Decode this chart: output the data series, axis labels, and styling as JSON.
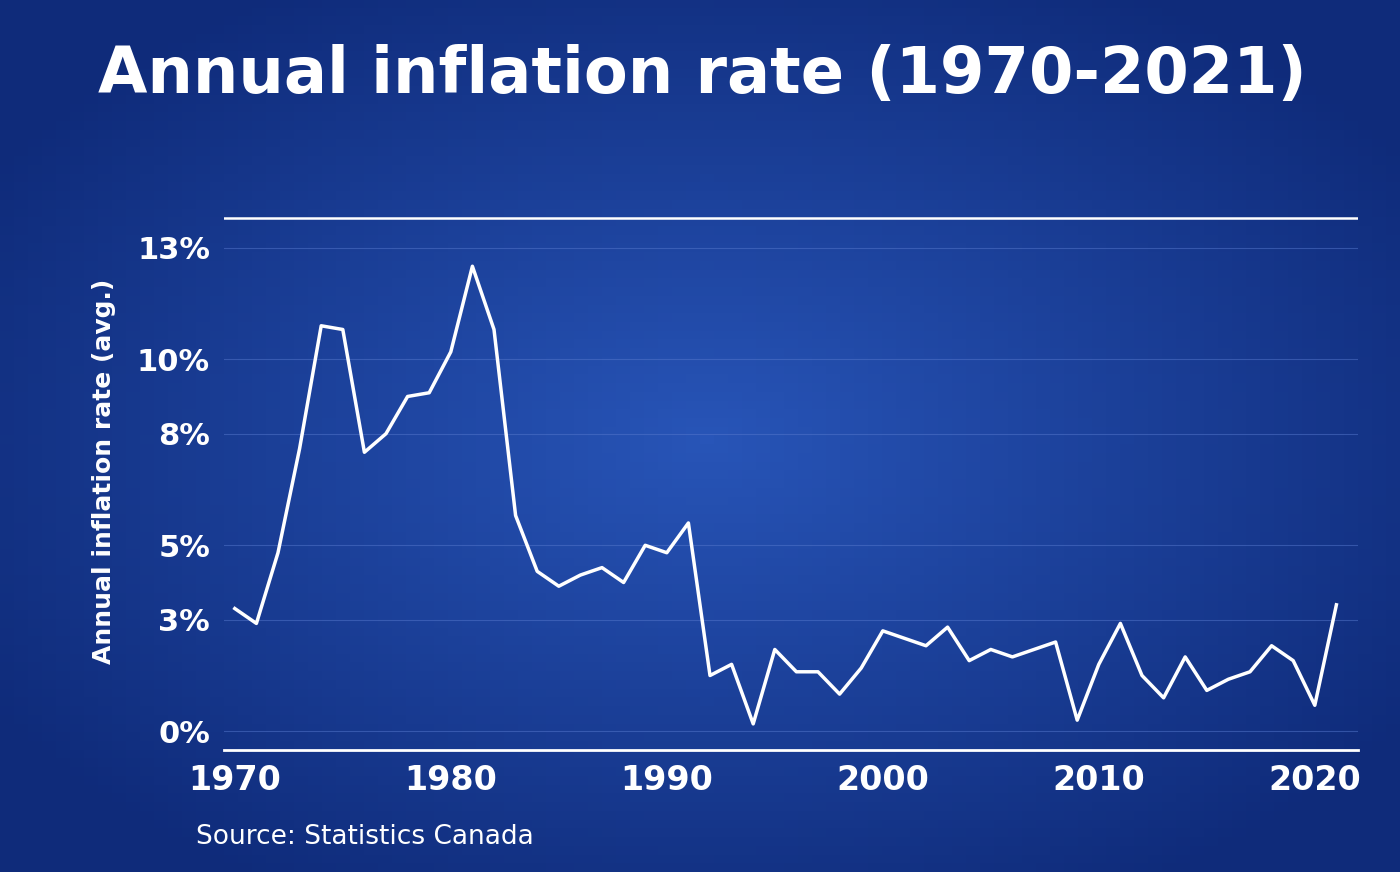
{
  "title": "Annual inflation rate (1970-2021)",
  "ylabel": "Annual inflation rate (avg.)",
  "source": "Source: Statistics Canada",
  "bg_center_color": "#2855b8",
  "bg_edge_color": "#0f2b7a",
  "line_color": "#ffffff",
  "grid_color": "#5577cc",
  "text_color": "#ffffff",
  "xlim": [
    1969.5,
    2022
  ],
  "ylim": [
    -0.5,
    14.5
  ],
  "yticks": [
    0,
    3,
    5,
    8,
    10,
    13
  ],
  "xticks": [
    1970,
    1980,
    1990,
    2000,
    2010,
    2020
  ],
  "years": [
    1970,
    1971,
    1972,
    1973,
    1974,
    1975,
    1976,
    1977,
    1978,
    1979,
    1980,
    1981,
    1982,
    1983,
    1984,
    1985,
    1986,
    1987,
    1988,
    1989,
    1990,
    1991,
    1992,
    1993,
    1994,
    1995,
    1996,
    1997,
    1998,
    1999,
    2000,
    2001,
    2002,
    2003,
    2004,
    2005,
    2006,
    2007,
    2008,
    2009,
    2010,
    2011,
    2012,
    2013,
    2014,
    2015,
    2016,
    2017,
    2018,
    2019,
    2020,
    2021
  ],
  "values": [
    3.3,
    2.9,
    4.8,
    7.6,
    10.9,
    10.8,
    7.5,
    8.0,
    9.0,
    9.1,
    10.2,
    12.5,
    10.8,
    5.8,
    4.3,
    3.9,
    4.2,
    4.4,
    4.0,
    5.0,
    4.8,
    5.6,
    1.5,
    1.8,
    0.2,
    2.2,
    1.6,
    1.6,
    1.0,
    1.7,
    2.7,
    2.5,
    2.3,
    2.8,
    1.9,
    2.2,
    2.0,
    2.2,
    2.4,
    0.3,
    1.8,
    2.9,
    1.5,
    0.9,
    2.0,
    1.1,
    1.4,
    1.6,
    2.3,
    1.9,
    0.7,
    3.4
  ]
}
